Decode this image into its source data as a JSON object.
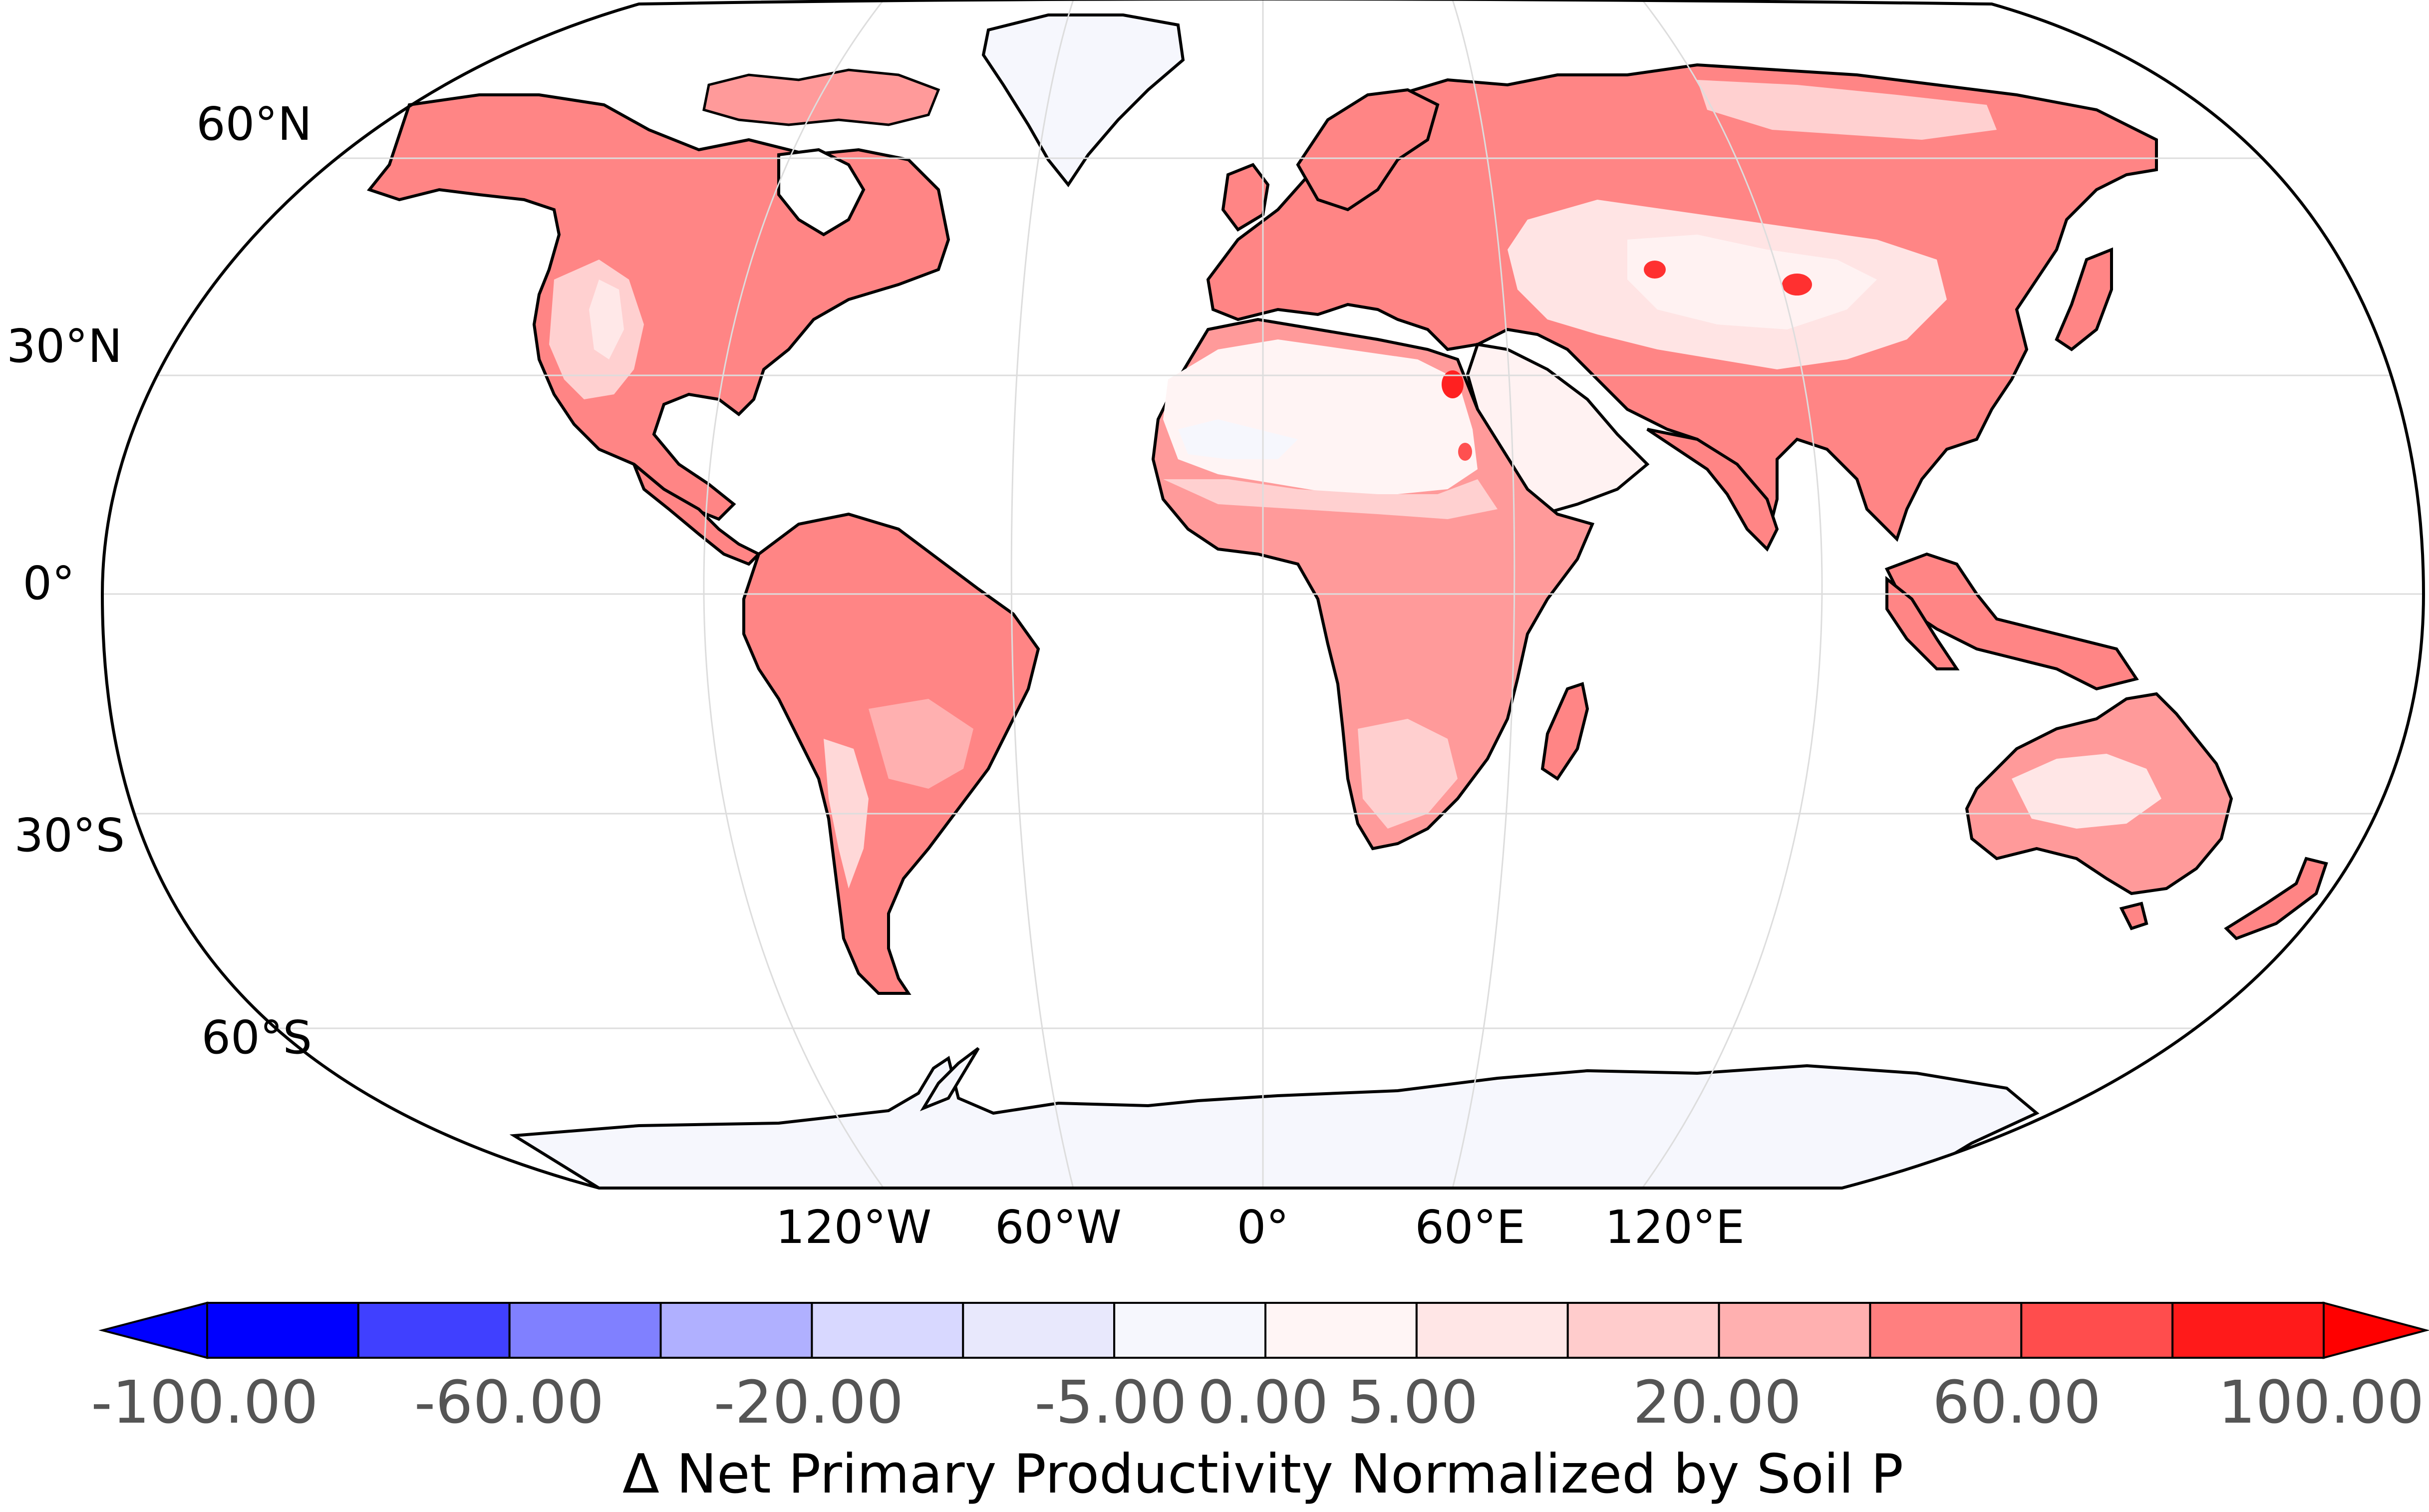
{
  "map": {
    "projection": "Robinson",
    "lat_labels": [
      "60°N",
      "30°N",
      "0°",
      "30°S",
      "60°S"
    ],
    "lon_labels": [
      "120°W",
      "60°W",
      "0°",
      "60°E",
      "120°E"
    ],
    "gridlines": true,
    "land_color_note": "predominantly positive (red) values over vegetated land; near-zero over deserts and ice sheets",
    "ocean_color": "#ffffff",
    "coastline_color": "#000000"
  },
  "colorbar": {
    "label": "Δ Net Primary Productivity Normalized by Soil P",
    "extend": "both",
    "tick_labels": [
      "-100.00",
      "-60.00",
      "-20.00",
      "-5.00",
      "0.00",
      "5.00",
      "20.00",
      "60.00",
      "100.00"
    ],
    "colors": [
      "#0000ff",
      "#4040ff",
      "#8080ff",
      "#b0b0ff",
      "#d8d8ff",
      "#e8e8fc",
      "#f6f7fd",
      "#fff5f5",
      "#ffe6e6",
      "#ffcccc",
      "#ffb0b0",
      "#ff7f7f",
      "#ff4d4d",
      "#ff1a1a"
    ],
    "under_color": "#0000ff",
    "over_color": "#ff0000"
  }
}
